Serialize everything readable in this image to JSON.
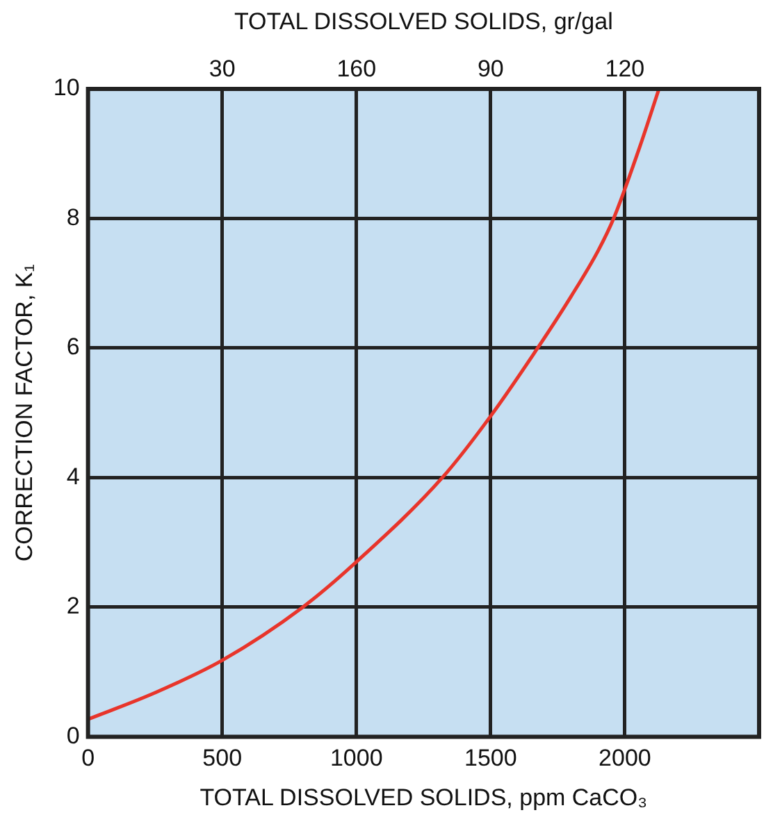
{
  "chart_data": {
    "type": "line",
    "xlabel": "TOTAL DISSOLVED SOLIDS, ppm CaCO₃",
    "ylabel": "CORRECTION FACTOR, K₁",
    "x2label": "TOTAL DISSOLVED SOLIDS, gr/gal",
    "xlim": [
      0,
      2500
    ],
    "xticks": [
      0,
      500,
      1000,
      1500,
      2000
    ],
    "annotations": [
      "30",
      "160",
      "90",
      "120"
    ],
    "ylim": [
      0,
      10
    ],
    "yticks": [
      0,
      2,
      4,
      6,
      8,
      10
    ],
    "grid": true,
    "marker": "none",
    "line_style": "solid",
    "x": [
      0,
      250,
      500,
      800,
      1000,
      1320,
      1500,
      1675,
      1800,
      1900,
      1958,
      2055,
      2127
    ],
    "series": [
      {
        "color": "#e8352b",
        "values": [
          0.27,
          0.68,
          1.18,
          2.0,
          2.7,
          4.0,
          4.95,
          6.0,
          6.8,
          7.5,
          8.0,
          9.1,
          10
        ]
      }
    ]
  }
}
